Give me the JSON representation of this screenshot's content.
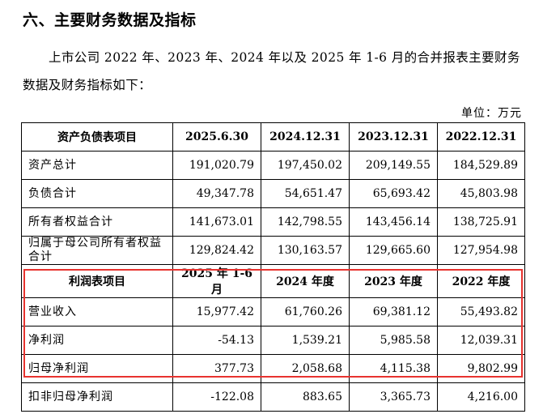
{
  "heading": "六、主要财务数据及指标",
  "paragraph": "上市公司 2022 年、2023 年、2024 年以及 2025 年 1-6 月的合并报表主要财务数据及财务指标如下：",
  "unit": "单位：万元",
  "balance_header": [
    "资产负债表项目",
    "2025.6.30",
    "2024.12.31",
    "2023.12.31",
    "2022.12.31"
  ],
  "balance_rows": [
    {
      "label": "资产总计",
      "values": [
        "191,020.79",
        "197,450.02",
        "209,149.55",
        "184,529.89"
      ]
    },
    {
      "label": "负债合计",
      "values": [
        "49,347.78",
        "54,651.47",
        "65,693.42",
        "45,803.98"
      ]
    },
    {
      "label": "所有者权益合计",
      "values": [
        "141,673.01",
        "142,798.55",
        "143,456.14",
        "138,725.91"
      ]
    },
    {
      "label": "归属于母公司所有者权益合计",
      "values": [
        "129,824.42",
        "130,163.57",
        "129,665.60",
        "127,954.98"
      ]
    }
  ],
  "income_header": [
    "利润表项目",
    "2025 年 1-6 月",
    "2024 年度",
    "2023 年度",
    "2022 年度"
  ],
  "income_rows": [
    {
      "label": "营业收入",
      "values": [
        "15,977.42",
        "61,760.26",
        "69,381.12",
        "55,493.82"
      ]
    },
    {
      "label": "净利润",
      "values": [
        "-54.13",
        "1,539.21",
        "5,985.58",
        "12,039.31"
      ]
    },
    {
      "label": "归母净利润",
      "values": [
        "377.73",
        "2,058.68",
        "4,115.38",
        "9,802.99"
      ]
    },
    {
      "label": "扣非归母净利润",
      "values": [
        "-122.08",
        "883.65",
        "3,365.73",
        "4,216.00"
      ]
    }
  ],
  "colors": {
    "highlight_border": "#e8332f"
  }
}
